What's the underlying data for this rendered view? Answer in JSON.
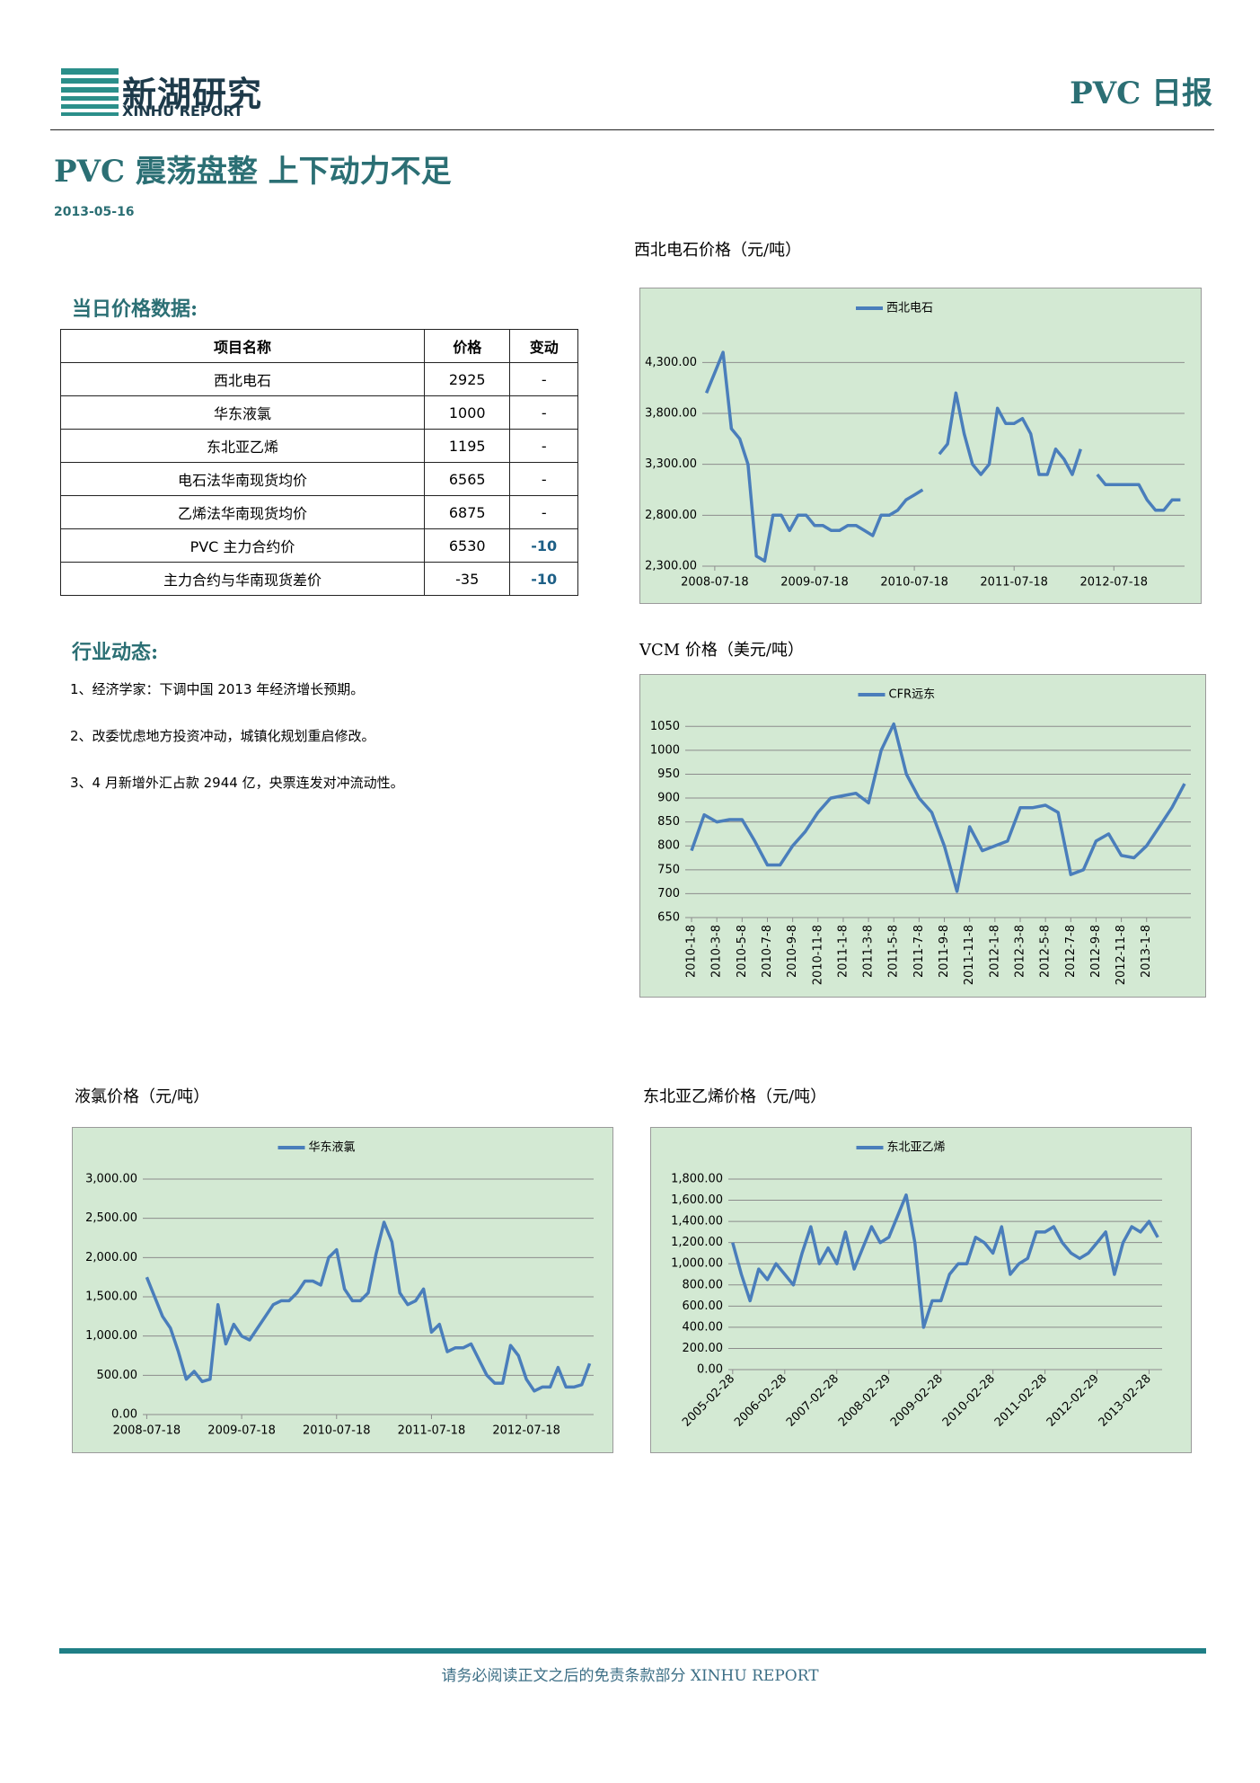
{
  "header": {
    "logo_cn": "新湖研究",
    "logo_en": "XINHU REPORT",
    "report_name": "PVC 日报"
  },
  "title": "PVC 震荡盘整 上下动力不足",
  "date": "2013-05-16",
  "price_section": {
    "heading": "当日价格数据:",
    "table": {
      "columns": [
        "项目名称",
        "价格",
        "变动"
      ],
      "rows": [
        [
          "西北电石",
          "2925",
          "-"
        ],
        [
          "华东液氯",
          "1000",
          "-"
        ],
        [
          "东北亚乙烯",
          "1195",
          "-"
        ],
        [
          "电石法华南现货均价",
          "6565",
          "-"
        ],
        [
          "乙烯法华南现货均价",
          "6875",
          "-"
        ],
        [
          "PVC 主力合约价",
          "6530",
          "-10"
        ],
        [
          "主力合约与华南现货差价",
          "-35",
          "-10"
        ]
      ]
    }
  },
  "news_section": {
    "heading": "行业动态:",
    "items": [
      "1、经济学家：下调中国 2013 年经济增长预期。",
      "2、改委忧虑地方投资冲动，城镇化规划重启修改。",
      "3、4 月新增外汇占款 2944 亿，央票连发对冲流动性。"
    ]
  },
  "chart_data": [
    {
      "type": "line",
      "title": "西北电石价格（元/吨）",
      "categories": [
        null,
        "2008-07-18",
        null,
        null,
        null,
        null,
        null,
        null,
        null,
        null,
        null,
        null,
        null,
        "2009-07-18",
        null,
        null,
        null,
        null,
        null,
        null,
        null,
        null,
        null,
        null,
        null,
        "2010-07-18",
        null,
        null,
        null,
        null,
        null,
        null,
        null,
        null,
        null,
        null,
        null,
        "2011-07-18",
        null,
        null,
        null,
        null,
        null,
        null,
        null,
        null,
        null,
        null,
        null,
        "2012-07-18",
        null,
        null,
        null,
        null,
        null,
        null,
        null,
        null
      ],
      "series": [
        {
          "name": "西北电石",
          "color": "#4a7ebb",
          "values": [
            4000,
            4200,
            4400,
            3650,
            3550,
            3300,
            2400,
            2350,
            2800,
            2800,
            2650,
            2800,
            2800,
            2700,
            2700,
            2650,
            2650,
            2700,
            2700,
            2650,
            2600,
            2800,
            2800,
            2850,
            2950,
            3000,
            3050,
            null,
            3400,
            3500,
            4000,
            3600,
            3300,
            3200,
            3300,
            3850,
            3700,
            3700,
            3750,
            3600,
            3200,
            3200,
            3450,
            3350,
            3200,
            3450,
            null,
            3200,
            3100,
            3100,
            3100,
            3100,
            3100,
            2950,
            2850,
            2850,
            2950,
            2950
          ]
        }
      ],
      "ylim": [
        2300,
        4550
      ],
      "yticks": [
        {
          "value": 2300,
          "label": "2,300.00"
        },
        {
          "value": 2800,
          "label": "2,800.00"
        },
        {
          "value": 3300,
          "label": "3,300.00"
        },
        {
          "value": 3800,
          "label": "3,800.00"
        },
        {
          "value": 4300,
          "label": "4,300.00"
        }
      ],
      "grid": true,
      "legend": "top"
    },
    {
      "type": "line",
      "title": "VCM 价格（美元/吨）",
      "categories": [
        "2010-1-8",
        null,
        "2010-3-8",
        null,
        "2010-5-8",
        null,
        "2010-7-8",
        null,
        "2010-9-8",
        null,
        "2010-11-8",
        null,
        "2011-1-8",
        null,
        "2011-3-8",
        null,
        "2011-5-8",
        null,
        "2011-7-8",
        null,
        "2011-9-8",
        null,
        "2011-11-8",
        null,
        "2012-1-8",
        null,
        "2012-3-8",
        null,
        "2012-5-8",
        null,
        "2012-7-8",
        null,
        "2012-9-8",
        null,
        "2012-11-8",
        null,
        "2013-1-8",
        null,
        null,
        null
      ],
      "series": [
        {
          "name": "CFR远东",
          "color": "#4a7ebb",
          "values": [
            790,
            865,
            850,
            855,
            855,
            810,
            760,
            760,
            800,
            830,
            870,
            900,
            905,
            910,
            890,
            1000,
            1055,
            950,
            900,
            870,
            800,
            705,
            840,
            790,
            800,
            810,
            880,
            880,
            885,
            870,
            740,
            750,
            810,
            825,
            780,
            775,
            800,
            840,
            880,
            930
          ]
        }
      ],
      "ylim": [
        650,
        1075
      ],
      "yticks": [
        650,
        700,
        750,
        800,
        850,
        900,
        950,
        1000,
        1050
      ],
      "grid": true,
      "legend": "top",
      "xlabel_rotation": -90
    },
    {
      "type": "line",
      "title": "液氯价格（元/吨）",
      "categories": [
        "2008-07-18",
        null,
        null,
        null,
        null,
        null,
        null,
        null,
        null,
        null,
        null,
        null,
        "2009-07-18",
        null,
        null,
        null,
        null,
        null,
        null,
        null,
        null,
        null,
        null,
        null,
        "2010-07-18",
        null,
        null,
        null,
        null,
        null,
        null,
        null,
        null,
        null,
        null,
        null,
        "2011-07-18",
        null,
        null,
        null,
        null,
        null,
        null,
        null,
        null,
        null,
        null,
        null,
        "2012-07-18",
        null,
        null,
        null,
        null,
        null,
        null,
        null,
        null
      ],
      "series": [
        {
          "name": "华东液氯",
          "color": "#4a7ebb",
          "values": [
            1750,
            1500,
            1250,
            1100,
            800,
            450,
            550,
            420,
            450,
            1400,
            900,
            1150,
            1000,
            950,
            1100,
            1250,
            1400,
            1450,
            1450,
            1550,
            1700,
            1700,
            1650,
            2000,
            2100,
            1600,
            1450,
            1450,
            1550,
            2050,
            2450,
            2200,
            1550,
            1400,
            1450,
            1600,
            1050,
            1150,
            800,
            850,
            850,
            900,
            700,
            500,
            400,
            400,
            880,
            750,
            450,
            300,
            350,
            350,
            600,
            350,
            350,
            380,
            650
          ]
        }
      ],
      "ylim": [
        0,
        3000
      ],
      "yticks": [
        {
          "value": 0,
          "label": "0.00"
        },
        {
          "value": 500,
          "label": "500.00"
        },
        {
          "value": 1000,
          "label": "1,000.00"
        },
        {
          "value": 1500,
          "label": "1,500.00"
        },
        {
          "value": 2000,
          "label": "2,000.00"
        },
        {
          "value": 2500,
          "label": "2,500.00"
        },
        {
          "value": 3000,
          "label": "3,000.00"
        }
      ],
      "grid": true,
      "legend": "top"
    },
    {
      "type": "line",
      "title": "东北亚乙烯价格（元/吨）",
      "categories": [
        "2005-02-28",
        null,
        null,
        null,
        null,
        null,
        "2006-02-28",
        null,
        null,
        null,
        null,
        null,
        "2007-02-28",
        null,
        null,
        null,
        null,
        null,
        "2008-02-29",
        null,
        null,
        null,
        null,
        null,
        "2009-02-28",
        null,
        null,
        null,
        null,
        null,
        "2010-02-28",
        null,
        null,
        null,
        null,
        null,
        "2011-02-28",
        null,
        null,
        null,
        null,
        null,
        "2012-02-29",
        null,
        null,
        null,
        null,
        null,
        "2013-02-28",
        null
      ],
      "series": [
        {
          "name": "东北亚乙烯",
          "color": "#4a7ebb",
          "values": [
            1200,
            900,
            650,
            950,
            850,
            1000,
            900,
            800,
            1100,
            1350,
            1000,
            1150,
            1000,
            1300,
            950,
            1150,
            1350,
            1200,
            1250,
            1450,
            1650,
            1200,
            400,
            650,
            650,
            900,
            1000,
            1000,
            1250,
            1200,
            1100,
            1350,
            900,
            1000,
            1050,
            1300,
            1300,
            1350,
            1200,
            1100,
            1050,
            1100,
            1200,
            1300,
            900,
            1200,
            1350,
            1300,
            1400,
            1250
          ]
        }
      ],
      "ylim": [
        0,
        1800
      ],
      "yticks": [
        {
          "value": 0,
          "label": "0.00"
        },
        {
          "value": 200,
          "label": "200.00"
        },
        {
          "value": 400,
          "label": "400.00"
        },
        {
          "value": 600,
          "label": "600.00"
        },
        {
          "value": 800,
          "label": "800.00"
        },
        {
          "value": 1000,
          "label": "1,000.00"
        },
        {
          "value": 1200,
          "label": "1,200.00"
        },
        {
          "value": 1400,
          "label": "1,400.00"
        },
        {
          "value": 1600,
          "label": "1,600.00"
        },
        {
          "value": 1800,
          "label": "1,800.00"
        }
      ],
      "grid": true,
      "legend": "top",
      "xlabel_rotation": -45
    }
  ]
}
